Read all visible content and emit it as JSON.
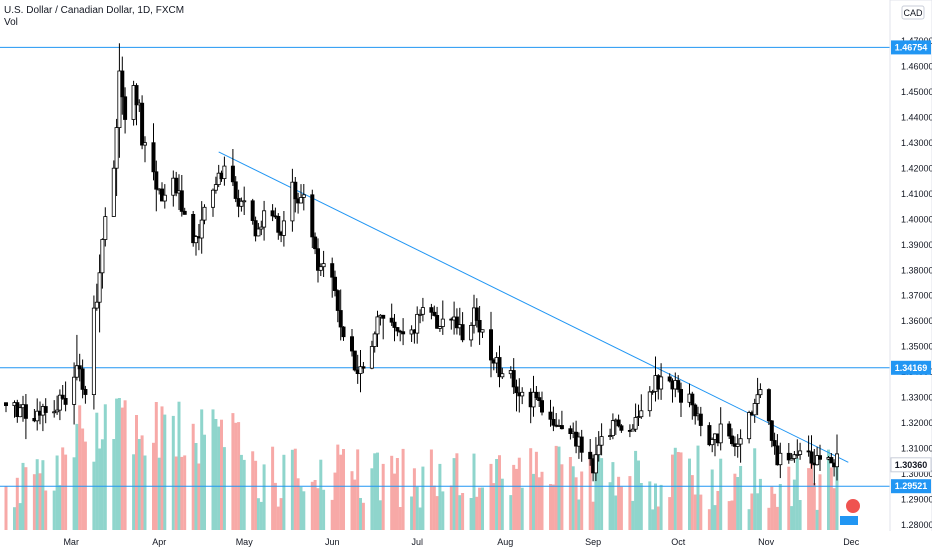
{
  "header": {
    "title": "U.S. Dollar / Canadian Dollar, 1D, FXCM",
    "volume_label": "Vol",
    "currency": "CAD"
  },
  "colors": {
    "up": "#26a69a",
    "down": "#ef5350",
    "candle": "#000000",
    "line": "#2196f3",
    "volume_up": "#8fd5cc",
    "volume_down": "#f7a9a7"
  },
  "chart_data": {
    "type": "candlestick",
    "symbol": "USDCAD",
    "timeframe": "1D",
    "source": "FXCM",
    "x_ticks": [
      "Mar",
      "Apr",
      "May",
      "Jun",
      "Jul",
      "Aug",
      "Sep",
      "Oct",
      "Nov",
      "Dec"
    ],
    "y_ticks": [
      "1.28000",
      "1.29000",
      "1.30000",
      "1.31000",
      "1.32000",
      "1.33000",
      "1.34000",
      "1.35000",
      "1.36000",
      "1.37000",
      "1.38000",
      "1.39000",
      "1.40000",
      "1.41000",
      "1.42000",
      "1.43000",
      "1.44000",
      "1.45000",
      "1.46000",
      "1.47000"
    ],
    "ylim": [
      1.278,
      1.483
    ],
    "price_labels": [
      "1.46754",
      "1.34169",
      "1.30360",
      "1.29521"
    ],
    "horizontal_lines": [
      1.46754,
      1.34169,
      1.29521
    ],
    "trendline": {
      "start": [
        "Apr 22",
        1.4265
      ],
      "end": [
        "Nov 26",
        1.3068
      ]
    },
    "close_path": [
      [
        "Feb 7",
        1.328
      ],
      [
        "Feb 14",
        1.325
      ],
      [
        "Feb 21",
        1.322
      ],
      [
        "Feb 28",
        1.33
      ],
      [
        "Mar 3",
        1.342
      ],
      [
        "Mar 6",
        1.336
      ],
      [
        "Mar 9",
        1.362
      ],
      [
        "Mar 12",
        1.39
      ],
      [
        "Mar 16",
        1.42
      ],
      [
        "Mar 18",
        1.452
      ],
      [
        "Mar 20",
        1.443
      ],
      [
        "Mar 23",
        1.45
      ],
      [
        "Mar 26",
        1.432
      ],
      [
        "Mar 30",
        1.415
      ],
      [
        "Apr 2",
        1.405
      ],
      [
        "Apr 6",
        1.416
      ],
      [
        "Apr 10",
        1.4
      ],
      [
        "Apr 14",
        1.392
      ],
      [
        "Apr 17",
        1.405
      ],
      [
        "Apr 21",
        1.412
      ],
      [
        "Apr 23",
        1.42
      ],
      [
        "Apr 27",
        1.412
      ],
      [
        "May 1",
        1.405
      ],
      [
        "May 5",
        1.395
      ],
      [
        "May 8",
        1.402
      ],
      [
        "May 11",
        1.4
      ],
      [
        "May 14",
        1.394
      ],
      [
        "May 18",
        1.412
      ],
      [
        "May 21",
        1.408
      ],
      [
        "May 24",
        1.4
      ],
      [
        "May 27",
        1.382
      ],
      [
        "Jun 1",
        1.376
      ],
      [
        "Jun 4",
        1.357
      ],
      [
        "Jun 8",
        1.345
      ],
      [
        "Jun 11",
        1.34
      ],
      [
        "Jun 15",
        1.353
      ],
      [
        "Jun 18",
        1.362
      ],
      [
        "Jun 22",
        1.36
      ],
      [
        "Jun 26",
        1.352
      ],
      [
        "Jun 30",
        1.358
      ],
      [
        "Jul 3",
        1.365
      ],
      [
        "Jul 7",
        1.362
      ],
      [
        "Jul 10",
        1.358
      ],
      [
        "Jul 14",
        1.36
      ],
      [
        "Jul 17",
        1.356
      ],
      [
        "Jul 21",
        1.362
      ],
      [
        "Jul 24",
        1.355
      ],
      [
        "Jul 27",
        1.347
      ],
      [
        "Jul 31",
        1.34
      ],
      [
        "Aug 3",
        1.339
      ],
      [
        "Aug 6",
        1.331
      ],
      [
        "Aug 10",
        1.33
      ],
      [
        "Aug 14",
        1.328
      ],
      [
        "Aug 18",
        1.322
      ],
      [
        "Aug 21",
        1.318
      ],
      [
        "Aug 25",
        1.317
      ],
      [
        "Aug 28",
        1.312
      ],
      [
        "Sep 1",
        1.302
      ],
      [
        "Sep 3",
        1.31
      ],
      [
        "Sep 8",
        1.318
      ],
      [
        "Sep 11",
        1.316
      ],
      [
        "Sep 15",
        1.317
      ],
      [
        "Sep 18",
        1.324
      ],
      [
        "Sep 22",
        1.334
      ],
      [
        "Sep 25",
        1.337
      ],
      [
        "Sep 29",
        1.336
      ],
      [
        "Oct 2",
        1.33
      ],
      [
        "Oct 6",
        1.328
      ],
      [
        "Oct 9",
        1.318
      ],
      [
        "Oct 13",
        1.312
      ],
      [
        "Oct 16",
        1.316
      ],
      [
        "Oct 20",
        1.314
      ],
      [
        "Oct 23",
        1.312
      ],
      [
        "Oct 27",
        1.326
      ],
      [
        "Oct 30",
        1.332
      ],
      [
        "Nov 2",
        1.32
      ],
      [
        "Nov 5",
        1.305
      ],
      [
        "Nov 9",
        1.304
      ],
      [
        "Nov 12",
        1.31
      ],
      [
        "Nov 16",
        1.308
      ],
      [
        "Nov 19",
        1.307
      ],
      [
        "Nov 23",
        1.306
      ],
      [
        "Nov 26",
        1.3036
      ]
    ]
  }
}
